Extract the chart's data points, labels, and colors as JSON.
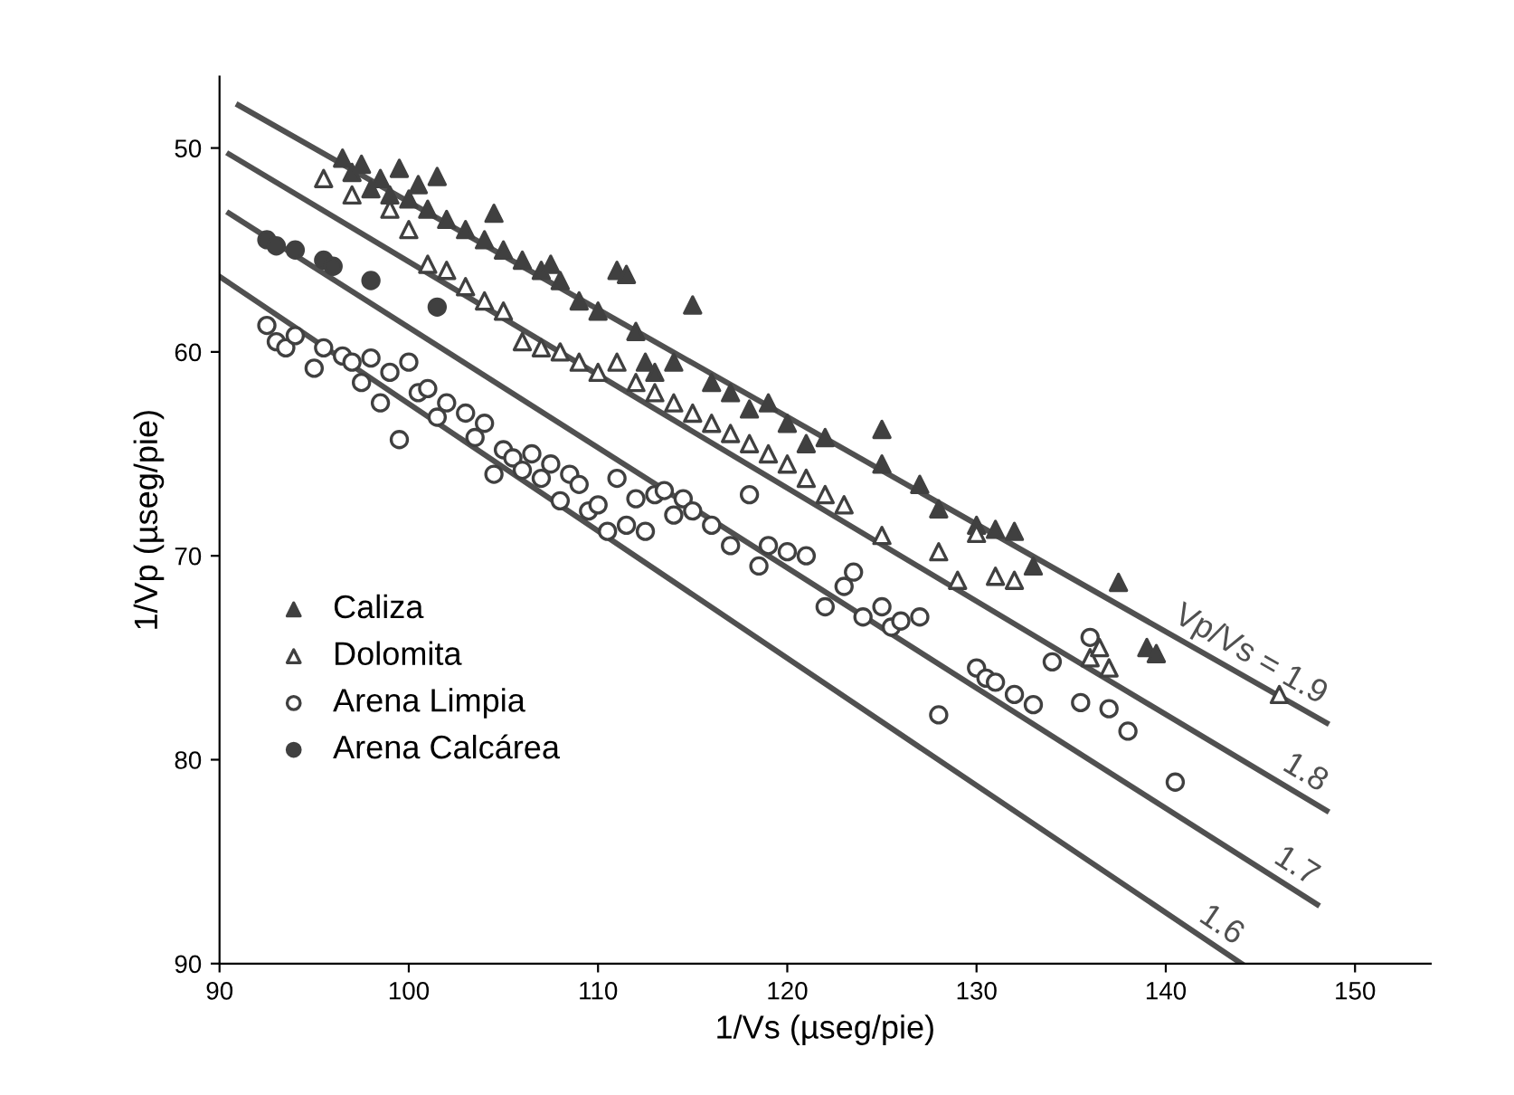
{
  "chart_data": {
    "type": "scatter",
    "xlabel": "1/Vs (µseg/pie)",
    "ylabel": "1/Vp (µseg/pie)",
    "xlim": [
      90,
      154
    ],
    "ylim": [
      90,
      46.5
    ],
    "xticks": [
      90,
      100,
      110,
      120,
      130,
      140,
      150
    ],
    "yticks": [
      50,
      60,
      70,
      80,
      90
    ],
    "grid": false,
    "legend": "left",
    "series": [
      {
        "name": "Caliza",
        "color": "#404040",
        "marker": "triangle",
        "x": [
          96.5,
          97,
          97.5,
          98,
          98.5,
          99,
          99.5,
          100,
          100.5,
          101,
          101.5,
          102,
          103,
          104,
          104.5,
          105,
          106,
          107,
          107.5,
          108,
          109,
          110,
          111,
          111.5,
          112,
          112.5,
          113,
          114,
          115,
          116,
          117,
          118,
          119,
          120,
          121,
          122,
          125,
          125,
          127,
          128,
          130,
          131,
          132,
          133,
          137.5,
          139,
          139.5
        ],
        "values": [
          50.5,
          51.2,
          50.8,
          52,
          51.5,
          52.3,
          51,
          52.5,
          51.8,
          53,
          51.4,
          53.5,
          54,
          54.5,
          53.2,
          55,
          55.5,
          56,
          55.7,
          56.5,
          57.5,
          58,
          56,
          56.2,
          59,
          60.5,
          61,
          60.5,
          57.7,
          61.5,
          62,
          62.8,
          62.5,
          63.5,
          64.5,
          64.2,
          63.8,
          65.5,
          66.5,
          67.7,
          68.5,
          68.7,
          68.8,
          70.5,
          71.3,
          74.5,
          74.8
        ]
      },
      {
        "name": "Dolomita",
        "color": "#404040",
        "marker": "triangle-open",
        "x": [
          95.5,
          97,
          99,
          100,
          101,
          102,
          103,
          104,
          105,
          106,
          107,
          108,
          109,
          110,
          111,
          112,
          113,
          114,
          115,
          116,
          117,
          118,
          119,
          120,
          121,
          122,
          123,
          125,
          128,
          129,
          130,
          131,
          132,
          136,
          136.5,
          137,
          146
        ],
        "values": [
          51.5,
          52.3,
          53,
          54,
          55.7,
          56,
          56.8,
          57.5,
          58,
          59.5,
          59.8,
          60,
          60.5,
          61,
          60.5,
          61.5,
          62,
          62.5,
          63,
          63.5,
          64,
          64.5,
          65,
          65.5,
          66.2,
          67,
          67.5,
          69,
          69.8,
          71.2,
          68.9,
          71,
          71.2,
          75,
          74.5,
          75.5,
          76.8
        ]
      },
      {
        "name": "Arena Limpia",
        "color": "#404040",
        "marker": "circle-open",
        "x": [
          92.5,
          93,
          93.5,
          94,
          95,
          95.5,
          96.5,
          97,
          97.5,
          98,
          98.5,
          99,
          99.5,
          100,
          100.5,
          101,
          101.5,
          102,
          103,
          103.5,
          104,
          104.5,
          105,
          105.5,
          106,
          106.5,
          107,
          107.5,
          108,
          108.5,
          109,
          109.5,
          110,
          110.5,
          111,
          111.5,
          112,
          112.5,
          113,
          113.5,
          114,
          114.5,
          115,
          116,
          117,
          118,
          118.5,
          119,
          120,
          121,
          122,
          123,
          123.5,
          124,
          125,
          125.5,
          126,
          127,
          128,
          130,
          130.5,
          131,
          132,
          133,
          134,
          135.5,
          136,
          137,
          138,
          140.5
        ],
        "values": [
          58.7,
          59.5,
          59.8,
          59.2,
          60.8,
          59.8,
          60.2,
          60.5,
          61.5,
          60.3,
          62.5,
          61,
          64.3,
          60.5,
          62,
          61.8,
          63.2,
          62.5,
          63,
          64.2,
          63.5,
          66,
          64.8,
          65.2,
          65.8,
          65,
          66.2,
          65.5,
          67.3,
          66,
          66.5,
          67.8,
          67.5,
          68.8,
          66.2,
          68.5,
          67.2,
          68.8,
          67,
          66.8,
          68,
          67.2,
          67.8,
          68.5,
          69.5,
          67,
          70.5,
          69.5,
          69.8,
          70,
          72.5,
          71.5,
          70.8,
          73,
          72.5,
          73.5,
          73.2,
          73,
          77.8,
          75.5,
          76,
          76.2,
          76.8,
          77.3,
          75.2,
          77.2,
          74,
          77.5,
          78.6,
          81.1
        ]
      },
      {
        "name": "Arena Calcárea",
        "color": "#404040",
        "marker": "circle",
        "x": [
          92.5,
          93,
          94,
          95.5,
          96,
          98,
          101.5
        ],
        "values": [
          54.5,
          54.8,
          55,
          55.5,
          55.8,
          56.5,
          57.8
        ]
      },
      {
        "type": "line",
        "name": "Vp/Vs = 1.9",
        "color": "#505050",
        "x": [
          91,
          148.5
        ],
        "values": [
          47.9,
          78.2
        ]
      },
      {
        "type": "line",
        "name": "1.8",
        "color": "#505050",
        "x": [
          90.5,
          148.5
        ],
        "values": [
          50.3,
          82.5
        ]
      },
      {
        "type": "line",
        "name": "1.7",
        "color": "#505050",
        "x": [
          90.5,
          148
        ],
        "values": [
          53.2,
          87.1
        ]
      },
      {
        "type": "line",
        "name": "1.6",
        "color": "#505050",
        "x": [
          90,
          144
        ],
        "values": [
          56.3,
          90
        ]
      }
    ]
  }
}
